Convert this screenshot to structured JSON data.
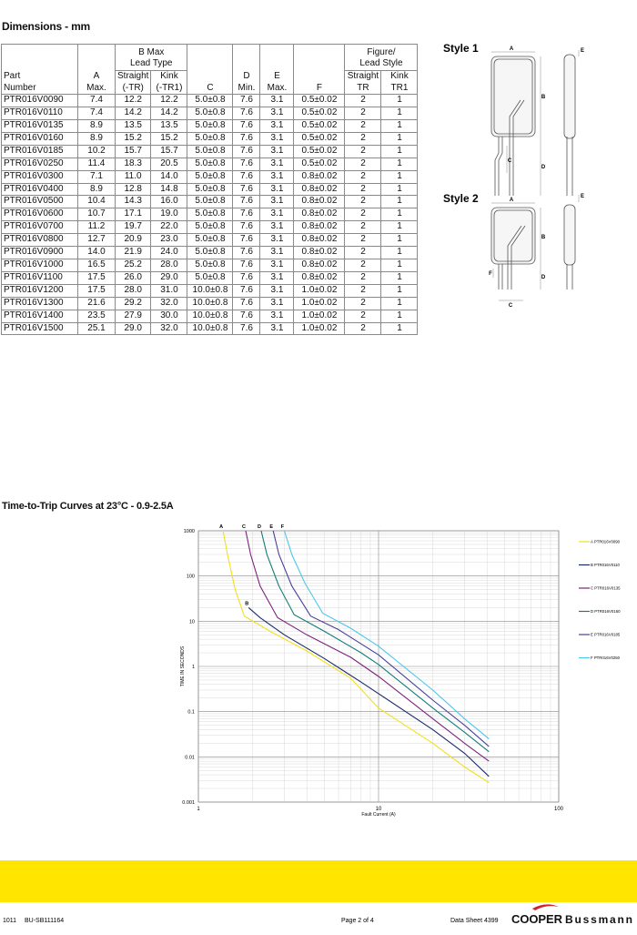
{
  "dimensions_heading": "Dimensions - mm",
  "table": {
    "group_headers": [
      [
        "B Max",
        "Lead Type"
      ],
      [
        "Figure/",
        "Lead Style"
      ]
    ],
    "columns": [
      [
        "Part",
        "Number"
      ],
      [
        "A",
        "Max."
      ],
      [
        "Straight",
        "(-TR)"
      ],
      [
        "Kink",
        "(-TR1)"
      ],
      [
        "C"
      ],
      [
        "D",
        "Min."
      ],
      [
        "E",
        "Max."
      ],
      [
        "F"
      ],
      [
        "Straight",
        "TR"
      ],
      [
        "Kink",
        "TR1"
      ]
    ],
    "rows": [
      [
        "PTR016V0090",
        "7.4",
        "12.2",
        "12.2",
        "5.0±0.8",
        "7.6",
        "3.1",
        "0.5±0.02",
        "2",
        "1"
      ],
      [
        "PTR016V0110",
        "7.4",
        "14.2",
        "14.2",
        "5.0±0.8",
        "7.6",
        "3.1",
        "0.5±0.02",
        "2",
        "1"
      ],
      [
        "PTR016V0135",
        "8.9",
        "13.5",
        "13.5",
        "5.0±0.8",
        "7.6",
        "3.1",
        "0.5±0.02",
        "2",
        "1"
      ],
      [
        "PTR016V0160",
        "8.9",
        "15.2",
        "15.2",
        "5.0±0.8",
        "7.6",
        "3.1",
        "0.5±0.02",
        "2",
        "1"
      ],
      [
        "PTR016V0185",
        "10.2",
        "15.7",
        "15.7",
        "5.0±0.8",
        "7.6",
        "3.1",
        "0.5±0.02",
        "2",
        "1"
      ],
      [
        "PTR016V0250",
        "11.4",
        "18.3",
        "20.5",
        "5.0±0.8",
        "7.6",
        "3.1",
        "0.5±0.02",
        "2",
        "1"
      ],
      [
        "PTR016V0300",
        "7.1",
        "11.0",
        "14.0",
        "5.0±0.8",
        "7.6",
        "3.1",
        "0.8±0.02",
        "2",
        "1"
      ],
      [
        "PTR016V0400",
        "8.9",
        "12.8",
        "14.8",
        "5.0±0.8",
        "7.6",
        "3.1",
        "0.8±0.02",
        "2",
        "1"
      ],
      [
        "PTR016V0500",
        "10.4",
        "14.3",
        "16.0",
        "5.0±0.8",
        "7.6",
        "3.1",
        "0.8±0.02",
        "2",
        "1"
      ],
      [
        "PTR016V0600",
        "10.7",
        "17.1",
        "19.0",
        "5.0±0.8",
        "7.6",
        "3.1",
        "0.8±0.02",
        "2",
        "1"
      ],
      [
        "PTR016V0700",
        "11.2",
        "19.7",
        "22.0",
        "5.0±0.8",
        "7.6",
        "3.1",
        "0.8±0.02",
        "2",
        "1"
      ],
      [
        "PTR016V0800",
        "12.7",
        "20.9",
        "23.0",
        "5.0±0.8",
        "7.6",
        "3.1",
        "0.8±0.02",
        "2",
        "1"
      ],
      [
        "PTR016V0900",
        "14.0",
        "21.9",
        "24.0",
        "5.0±0.8",
        "7.6",
        "3.1",
        "0.8±0.02",
        "2",
        "1"
      ],
      [
        "PTR016V1000",
        "16.5",
        "25.2",
        "28.0",
        "5.0±0.8",
        "7.6",
        "3.1",
        "0.8±0.02",
        "2",
        "1"
      ],
      [
        "PTR016V1100",
        "17.5",
        "26.0",
        "29.0",
        "5.0±0.8",
        "7.6",
        "3.1",
        "0.8±0.02",
        "2",
        "1"
      ],
      [
        "PTR016V1200",
        "17.5",
        "28.0",
        "31.0",
        "10.0±0.8",
        "7.6",
        "3.1",
        "1.0±0.02",
        "2",
        "1"
      ],
      [
        "PTR016V1300",
        "21.6",
        "29.2",
        "32.0",
        "10.0±0.8",
        "7.6",
        "3.1",
        "1.0±0.02",
        "2",
        "1"
      ],
      [
        "PTR016V1400",
        "23.5",
        "27.9",
        "30.0",
        "10.0±0.8",
        "7.6",
        "3.1",
        "1.0±0.02",
        "2",
        "1"
      ],
      [
        "PTR016V1500",
        "25.1",
        "29.0",
        "32.0",
        "10.0±0.8",
        "7.6",
        "3.1",
        "1.0±0.02",
        "2",
        "1"
      ]
    ]
  },
  "style1": {
    "label": "Style 1",
    "dims": [
      "A",
      "E",
      "B",
      "C",
      "D"
    ]
  },
  "style2": {
    "label": "Style 2",
    "dims": [
      "A",
      "E",
      "B",
      "F",
      "D",
      "C"
    ]
  },
  "chart_data": {
    "type": "line",
    "title": "Time-to-Trip Curves at 23°C - 0.9-2.5A",
    "xlabel": "Fault Current (A)",
    "ylabel": "TIME IN SECONDS",
    "x_log": true,
    "y_log": true,
    "xlim": [
      1,
      100
    ],
    "ylim": [
      0.001,
      1000
    ],
    "xticks": [
      1,
      10,
      100
    ],
    "yticks": [
      1000,
      100,
      10,
      1,
      0.1,
      0.01,
      0.001
    ],
    "grid": true,
    "minor_grid": true,
    "legend": "right",
    "curve_labels": [
      "A",
      "B",
      "C",
      "D",
      "E",
      "F"
    ],
    "series": [
      {
        "name": "A PTR016V0090",
        "color": "#f2e01c",
        "x": [
          1.37,
          1.45,
          1.6,
          1.8,
          2.5,
          4,
          7,
          10,
          20,
          30,
          41
        ],
        "values": [
          1000,
          300,
          50,
          13,
          6,
          2.2,
          0.55,
          0.12,
          0.02,
          0.006,
          0.0027
        ]
      },
      {
        "name": "B PTR016V0110",
        "color": "#1b2a6b",
        "x": [
          1.9,
          2.2,
          3,
          5,
          8,
          10,
          20,
          30,
          41
        ],
        "values": [
          20,
          12,
          5,
          1.5,
          0.45,
          0.25,
          0.04,
          0.012,
          0.0037
        ]
      },
      {
        "name": "C PTR016V0135",
        "color": "#7b237c",
        "x": [
          1.83,
          1.95,
          2.2,
          2.75,
          4,
          7,
          10,
          20,
          30,
          41
        ],
        "values": [
          1000,
          300,
          60,
          12,
          5,
          1.6,
          0.6,
          0.07,
          0.02,
          0.008
        ]
      },
      {
        "name": "D PTR016V0160",
        "color": "#127c78",
        "x": [
          2.23,
          2.4,
          2.8,
          3.4,
          5,
          8,
          10,
          20,
          30,
          41
        ],
        "values": [
          1000,
          300,
          60,
          14,
          6,
          2,
          1.1,
          0.12,
          0.035,
          0.013
        ]
      },
      {
        "name": "E PTR016V0185",
        "color": "#4a3f9c",
        "x": [
          2.6,
          2.8,
          3.3,
          4.2,
          6,
          10,
          20,
          30,
          41
        ],
        "values": [
          1000,
          300,
          60,
          13,
          6.5,
          1.8,
          0.18,
          0.05,
          0.017
        ]
      },
      {
        "name": "F PTR016V0250",
        "color": "#4cc6ea",
        "x": [
          3.0,
          3.3,
          3.9,
          4.9,
          7,
          10,
          20,
          30,
          41
        ],
        "values": [
          1000,
          300,
          70,
          15,
          7,
          2.8,
          0.3,
          0.07,
          0.025
        ]
      }
    ]
  },
  "footer": {
    "date": "1011",
    "code": "BU-SB111164",
    "page": "Page 2 of 4",
    "sheet": "Data Sheet 4399",
    "brand1": "COOPER",
    "brand2": "Bussmann"
  }
}
